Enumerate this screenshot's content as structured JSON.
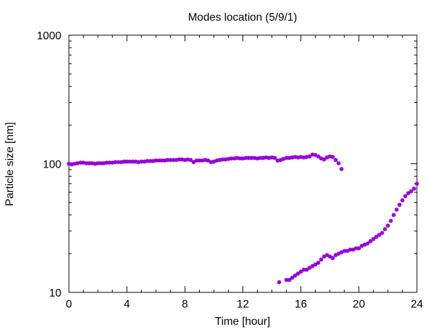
{
  "chart_data": {
    "type": "scatter",
    "title": "Modes location (5/9/1)",
    "xlabel": "Time [hour]",
    "ylabel": "Particle size [nm]",
    "xlim": [
      0,
      24
    ],
    "ylim": [
      10,
      1000
    ],
    "yscale": "log",
    "grid": false,
    "legend": "none",
    "xticks": [
      0,
      4,
      8,
      12,
      16,
      20,
      24
    ],
    "xtick_labels": [
      "0",
      "4",
      "8",
      "12",
      "16",
      "20",
      "24"
    ],
    "yticks": [
      10,
      100,
      1000
    ],
    "ytick_labels": [
      "10",
      "100",
      "1000"
    ],
    "marker_color": "#9400d3",
    "series": [
      {
        "points": [
          [
            0.0,
            100
          ],
          [
            0.2,
            99
          ],
          [
            0.4,
            100
          ],
          [
            0.6,
            101
          ],
          [
            0.8,
            102
          ],
          [
            1.0,
            102
          ],
          [
            1.2,
            101
          ],
          [
            1.4,
            101
          ],
          [
            1.6,
            101
          ],
          [
            1.8,
            100
          ],
          [
            2.0,
            101
          ],
          [
            2.2,
            101
          ],
          [
            2.4,
            101
          ],
          [
            2.6,
            102
          ],
          [
            2.8,
            102
          ],
          [
            3.0,
            102
          ],
          [
            3.2,
            103
          ],
          [
            3.4,
            103
          ],
          [
            3.6,
            103
          ],
          [
            3.8,
            104
          ],
          [
            4.0,
            104
          ],
          [
            4.2,
            104
          ],
          [
            4.4,
            104
          ],
          [
            4.6,
            104
          ],
          [
            4.8,
            103
          ],
          [
            5.0,
            104
          ],
          [
            5.2,
            104
          ],
          [
            5.4,
            105
          ],
          [
            5.6,
            105
          ],
          [
            5.8,
            105
          ],
          [
            6.0,
            106
          ],
          [
            6.2,
            106
          ],
          [
            6.4,
            106
          ],
          [
            6.6,
            106
          ],
          [
            6.8,
            107
          ],
          [
            7.0,
            107
          ],
          [
            7.2,
            107
          ],
          [
            7.4,
            107
          ],
          [
            7.6,
            108
          ],
          [
            7.8,
            108
          ],
          [
            8.0,
            107
          ],
          [
            8.2,
            108
          ],
          [
            8.4,
            107
          ],
          [
            8.6,
            103
          ],
          [
            8.8,
            106
          ],
          [
            9.0,
            106
          ],
          [
            9.2,
            106
          ],
          [
            9.4,
            107
          ],
          [
            9.6,
            106
          ],
          [
            9.8,
            103
          ],
          [
            10.0,
            104
          ],
          [
            10.2,
            106
          ],
          [
            10.4,
            107
          ],
          [
            10.6,
            108
          ],
          [
            10.8,
            108
          ],
          [
            11.0,
            109
          ],
          [
            11.2,
            110
          ],
          [
            11.4,
            110
          ],
          [
            11.6,
            111
          ],
          [
            11.8,
            110
          ],
          [
            12.0,
            110
          ],
          [
            12.2,
            111
          ],
          [
            12.4,
            111
          ],
          [
            12.6,
            111
          ],
          [
            12.8,
            111
          ],
          [
            13.0,
            110
          ],
          [
            13.2,
            111
          ],
          [
            13.4,
            111
          ],
          [
            13.6,
            112
          ],
          [
            13.8,
            111
          ],
          [
            14.0,
            112
          ],
          [
            14.2,
            111
          ],
          [
            14.4,
            106
          ],
          [
            14.6,
            107
          ],
          [
            14.8,
            109
          ],
          [
            15.0,
            111
          ],
          [
            15.2,
            111
          ],
          [
            15.4,
            112
          ],
          [
            15.6,
            113
          ],
          [
            15.8,
            112
          ],
          [
            16.0,
            113
          ],
          [
            16.2,
            112
          ],
          [
            16.4,
            113
          ],
          [
            16.6,
            114
          ],
          [
            16.8,
            118
          ],
          [
            17.0,
            117
          ],
          [
            17.2,
            114
          ],
          [
            17.4,
            110
          ],
          [
            17.6,
            108
          ],
          [
            17.8,
            112
          ],
          [
            18.0,
            114
          ],
          [
            18.2,
            113
          ],
          [
            18.4,
            107
          ],
          [
            18.6,
            101
          ],
          [
            18.8,
            91
          ],
          [
            14.5,
            12
          ],
          [
            15.0,
            12.5
          ],
          [
            15.2,
            12.5
          ],
          [
            15.4,
            13
          ],
          [
            15.6,
            13.5
          ],
          [
            15.8,
            14
          ],
          [
            16.0,
            14.5
          ],
          [
            16.2,
            15
          ],
          [
            16.4,
            15
          ],
          [
            16.6,
            15.5
          ],
          [
            16.8,
            16
          ],
          [
            17.0,
            16.5
          ],
          [
            17.2,
            17
          ],
          [
            17.4,
            18
          ],
          [
            17.6,
            19
          ],
          [
            17.8,
            19.5
          ],
          [
            18.0,
            19
          ],
          [
            18.2,
            18.5
          ],
          [
            18.4,
            19.5
          ],
          [
            18.6,
            20
          ],
          [
            18.8,
            20.5
          ],
          [
            19.0,
            21
          ],
          [
            19.2,
            21
          ],
          [
            19.4,
            21.5
          ],
          [
            19.6,
            21.5
          ],
          [
            19.8,
            22
          ],
          [
            20.0,
            22
          ],
          [
            20.2,
            23
          ],
          [
            20.4,
            23.5
          ],
          [
            20.6,
            24
          ],
          [
            20.8,
            25
          ],
          [
            21.0,
            26
          ],
          [
            21.2,
            27
          ],
          [
            21.4,
            28
          ],
          [
            21.6,
            29
          ],
          [
            21.8,
            31
          ],
          [
            22.0,
            33
          ],
          [
            22.2,
            36
          ],
          [
            22.4,
            40
          ],
          [
            22.6,
            44
          ],
          [
            22.8,
            48
          ],
          [
            23.0,
            52
          ],
          [
            23.2,
            56
          ],
          [
            23.4,
            59
          ],
          [
            23.6,
            61
          ],
          [
            23.8,
            64
          ],
          [
            24.0,
            70
          ]
        ]
      }
    ]
  }
}
